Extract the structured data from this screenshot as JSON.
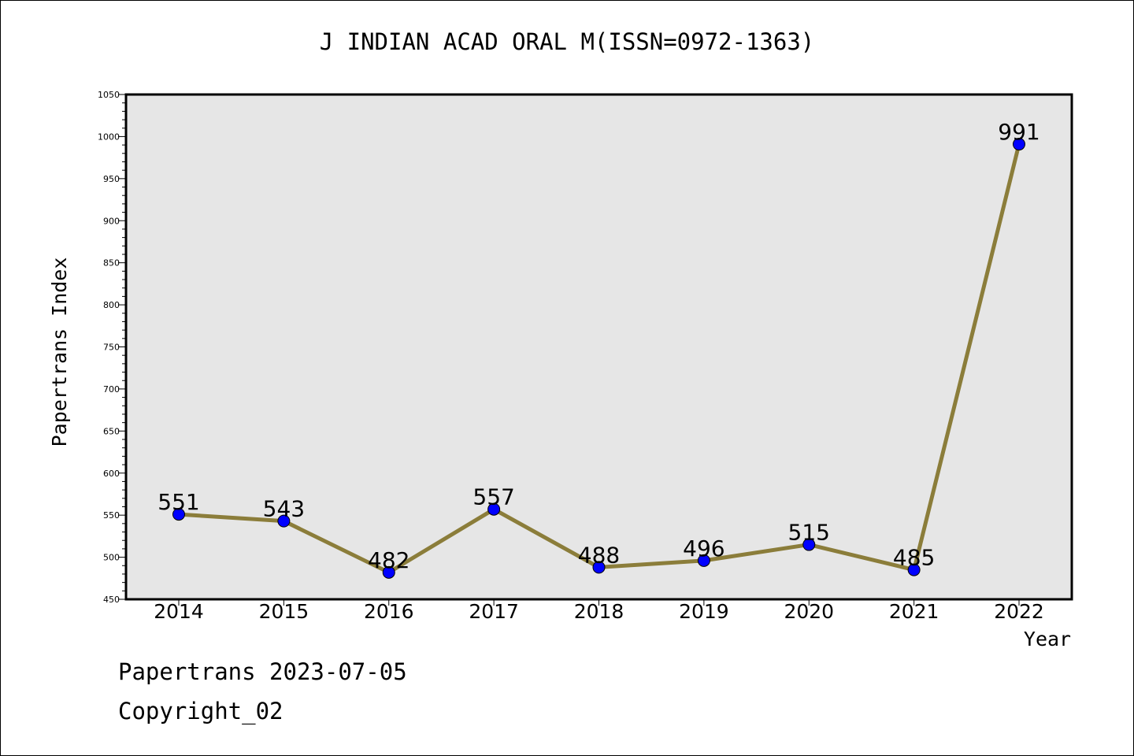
{
  "chart_data": {
    "type": "line",
    "title": "J INDIAN ACAD ORAL M(ISSN=0972-1363)",
    "xlabel": "Year",
    "ylabel": "Papertrans Index",
    "categories": [
      "2014",
      "2015",
      "2016",
      "2017",
      "2018",
      "2019",
      "2020",
      "2021",
      "2022"
    ],
    "series": [
      {
        "values": [
          551,
          543,
          482,
          557,
          488,
          496,
          515,
          485,
          991
        ]
      }
    ],
    "data_labels": [
      "551",
      "543",
      "482",
      "557",
      "488",
      "496",
      "515",
      "485",
      "991"
    ],
    "yticks": [
      "450",
      "500",
      "550",
      "600",
      "650",
      "700",
      "750",
      "800",
      "850",
      "900",
      "950",
      "1000",
      "1050"
    ],
    "ylim": [
      450,
      1050
    ],
    "grid": false,
    "colors": {
      "line": "#8B7D3A",
      "marker": "#0000FF",
      "plot_background": "#E6E6E6"
    }
  },
  "footer": {
    "line1": "Papertrans 2023-07-05",
    "line2": "Copyright_02"
  }
}
